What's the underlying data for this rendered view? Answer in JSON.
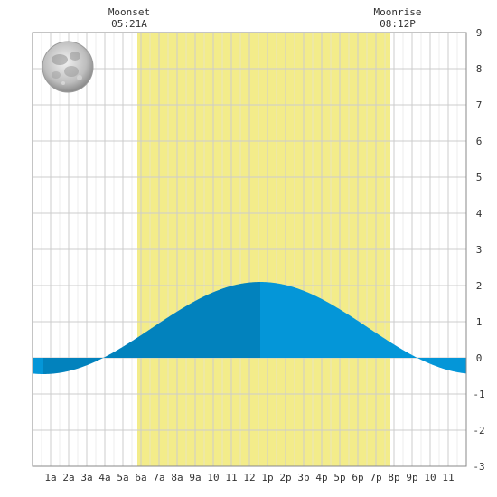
{
  "chart_data": {
    "type": "area",
    "title": "",
    "xlabel": "",
    "ylabel": "",
    "x_range": [
      0,
      24
    ],
    "ylim": [
      -3,
      9
    ],
    "grid": true,
    "x_tick_labels": [
      {
        "hour": 1,
        "label": "1a"
      },
      {
        "hour": 2,
        "label": "2a"
      },
      {
        "hour": 3,
        "label": "3a"
      },
      {
        "hour": 4,
        "label": "4a"
      },
      {
        "hour": 5,
        "label": "5a"
      },
      {
        "hour": 6,
        "label": "6a"
      },
      {
        "hour": 7,
        "label": "7a"
      },
      {
        "hour": 8,
        "label": "8a"
      },
      {
        "hour": 9,
        "label": "9a"
      },
      {
        "hour": 10,
        "label": "10"
      },
      {
        "hour": 11,
        "label": "11"
      },
      {
        "hour": 12,
        "label": "12"
      },
      {
        "hour": 13,
        "label": "1p"
      },
      {
        "hour": 14,
        "label": "2p"
      },
      {
        "hour": 15,
        "label": "3p"
      },
      {
        "hour": 16,
        "label": "4p"
      },
      {
        "hour": 17,
        "label": "5p"
      },
      {
        "hour": 18,
        "label": "6p"
      },
      {
        "hour": 19,
        "label": "7p"
      },
      {
        "hour": 20,
        "label": "8p"
      },
      {
        "hour": 21,
        "label": "9p"
      },
      {
        "hour": 22,
        "label": "10"
      },
      {
        "hour": 23,
        "label": "11"
      }
    ],
    "y_ticks": [
      -3,
      -2,
      -1,
      0,
      1,
      2,
      3,
      4,
      5,
      6,
      7,
      8,
      9
    ],
    "daylight": {
      "start_hour": 5.8,
      "end_hour": 19.8,
      "color": "#f3ec8a"
    },
    "tide_curve": {
      "low_hour": 0.6,
      "low_value": -0.45,
      "high_hour": 12.6,
      "high_value": 2.1,
      "colors": {
        "rising": "#0282bd",
        "falling": "#0496d8"
      }
    },
    "annotations": [
      {
        "title": "Moonset",
        "time": "05:21A",
        "hour": 5.35
      },
      {
        "title": "Moonrise",
        "time": "08:12P",
        "hour": 20.2
      }
    ],
    "moon_phase": "full-moon",
    "colors": {
      "grid": "#cccccc",
      "frame": "#888888",
      "text": "#333333"
    }
  }
}
